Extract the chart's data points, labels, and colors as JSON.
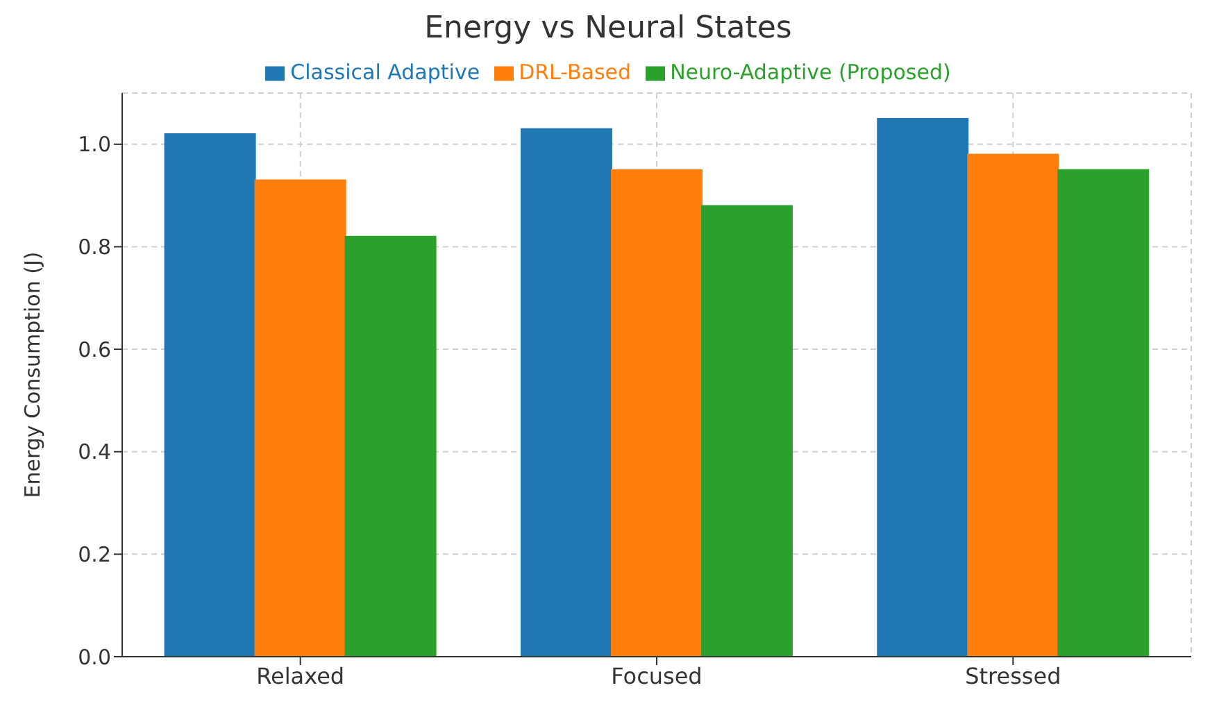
{
  "chart_data": {
    "type": "bar",
    "title": "Energy vs Neural States",
    "ylabel": "Energy Consumption (J)",
    "categories": [
      "Relaxed",
      "Focused",
      "Stressed"
    ],
    "series": [
      {
        "name": "Classical Adaptive",
        "color": "#1f77b4",
        "values": [
          1.02,
          1.03,
          1.05
        ]
      },
      {
        "name": "DRL-Based",
        "color": "#ff7f0e",
        "values": [
          0.93,
          0.95,
          0.98
        ]
      },
      {
        "name": "Neuro-Adaptive (Proposed)",
        "color": "#2ca02c",
        "values": [
          0.82,
          0.88,
          0.95
        ]
      }
    ],
    "ylim": [
      0,
      1.1
    ],
    "yticks": [
      {
        "value": 0,
        "label": "0.0"
      },
      {
        "value": 0.2,
        "label": "0.2"
      },
      {
        "value": 0.4,
        "label": "0.4"
      },
      {
        "value": 0.6,
        "label": "0.6"
      },
      {
        "value": 0.8,
        "label": "0.8"
      },
      {
        "value": 1,
        "label": "1.0"
      }
    ],
    "grid": true,
    "legend": "top"
  }
}
